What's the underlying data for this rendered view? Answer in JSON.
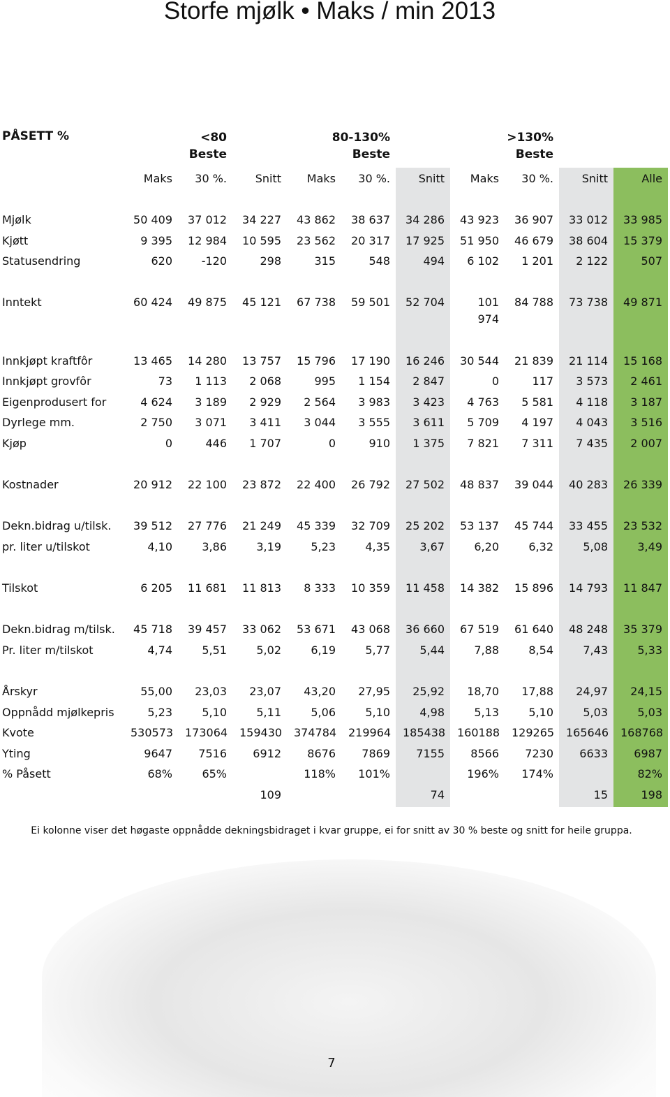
{
  "title": "Storfe mjølk • Maks / min 2013",
  "header": {
    "corner": "PÅSETT %",
    "groups": [
      {
        "label": "<80",
        "sub": "Beste",
        "col": 1
      },
      {
        "label": "80-130%",
        "sub": "Beste",
        "col": 4
      },
      {
        "label": ">130%",
        "sub": "Beste",
        "col": 7
      }
    ],
    "columns": [
      "Maks",
      "30 %.",
      "Snitt",
      "Maks",
      "30 %.",
      "Snitt",
      "Maks",
      "30 %.",
      "Snitt",
      "Alle"
    ]
  },
  "groups": [
    {
      "rows": [
        {
          "label": "Mjølk",
          "values": [
            "50 409",
            "37 012",
            "34 227",
            "43 862",
            "38 637",
            "34 286",
            "43 923",
            "36 907",
            "33 012",
            "33 985"
          ]
        },
        {
          "label": "Kjøtt",
          "values": [
            "9 395",
            "12 984",
            "10 595",
            "23 562",
            "20 317",
            "17 925",
            "51 950",
            "46 679",
            "38 604",
            "15 379"
          ]
        },
        {
          "label": "Statusendring",
          "values": [
            "620",
            "-120",
            "298",
            "315",
            "548",
            "494",
            "6 102",
            "1 201",
            "2 122",
            "507"
          ]
        }
      ]
    },
    {
      "rows": [
        {
          "label": "Inntekt",
          "values": [
            "60 424",
            "49 875",
            "45 121",
            "67 738",
            "59 501",
            "52 704",
            "101 974",
            "84 788",
            "73 738",
            "49 871"
          ]
        }
      ]
    },
    {
      "rows": [
        {
          "label": "Innkjøpt kraftfôr",
          "values": [
            "13 465",
            "14 280",
            "13 757",
            "15 796",
            "17 190",
            "16 246",
            "30 544",
            "21 839",
            "21 114",
            "15 168"
          ]
        },
        {
          "label": "Innkjøpt grovfôr",
          "values": [
            "73",
            "1 113",
            "2 068",
            "995",
            "1 154",
            "2 847",
            "0",
            "117",
            "3 573",
            "2 461"
          ]
        },
        {
          "label": "Eigenprodusert for",
          "values": [
            "4 624",
            "3 189",
            "2 929",
            "2 564",
            "3 983",
            "3 423",
            "4 763",
            "5 581",
            "4 118",
            "3 187"
          ]
        },
        {
          "label": "Dyrlege mm.",
          "values": [
            "2 750",
            "3 071",
            "3 411",
            "3 044",
            "3 555",
            "3 611",
            "5 709",
            "4 197",
            "4 043",
            "3 516"
          ]
        },
        {
          "label": "Kjøp",
          "values": [
            "0",
            "446",
            "1 707",
            "0",
            "910",
            "1 375",
            "7 821",
            "7 311",
            "7 435",
            "2 007"
          ]
        }
      ]
    },
    {
      "rows": [
        {
          "label": "Kostnader",
          "values": [
            "20 912",
            "22 100",
            "23 872",
            "22 400",
            "26 792",
            "27 502",
            "48 837",
            "39 044",
            "40 283",
            "26 339"
          ]
        }
      ]
    },
    {
      "rows": [
        {
          "label": "Dekn.bidrag u/tilsk.",
          "values": [
            "39 512",
            "27 776",
            "21 249",
            "45 339",
            "32 709",
            "25 202",
            "53 137",
            "45 744",
            "33 455",
            "23 532"
          ]
        },
        {
          "label": "pr. liter u/tilskot",
          "values": [
            "4,10",
            "3,86",
            "3,19",
            "5,23",
            "4,35",
            "3,67",
            "6,20",
            "6,32",
            "5,08",
            "3,49"
          ]
        }
      ]
    },
    {
      "rows": [
        {
          "label": "Tilskot",
          "values": [
            "6 205",
            "11 681",
            "11 813",
            "8 333",
            "10 359",
            "11 458",
            "14 382",
            "15 896",
            "14 793",
            "11 847"
          ]
        }
      ]
    },
    {
      "rows": [
        {
          "label": "Dekn.bidrag m/tilsk.",
          "values": [
            "45 718",
            "39 457",
            "33 062",
            "53 671",
            "43 068",
            "36 660",
            "67 519",
            "61 640",
            "48 248",
            "35 379"
          ]
        },
        {
          "label": "Pr. liter m/tilskot",
          "values": [
            "4,74",
            "5,51",
            "5,02",
            "6,19",
            "5,77",
            "5,44",
            "7,88",
            "8,54",
            "7,43",
            "5,33"
          ]
        }
      ]
    },
    {
      "rows": [
        {
          "label": "Årskyr",
          "values": [
            "55,00",
            "23,03",
            "23,07",
            "43,20",
            "27,95",
            "25,92",
            "18,70",
            "17,88",
            "24,97",
            "24,15"
          ]
        },
        {
          "label": "Oppnådd mjølkepris",
          "values": [
            "5,23",
            "5,10",
            "5,11",
            "5,06",
            "5,10",
            "4,98",
            "5,13",
            "5,10",
            "5,03",
            "5,03"
          ]
        },
        {
          "label": "Kvote",
          "values": [
            "530573",
            "173064",
            "159430",
            "374784",
            "219964",
            "185438",
            "160188",
            "129265",
            "165646",
            "168768"
          ]
        },
        {
          "label": "Yting",
          "values": [
            "9647",
            "7516",
            "6912",
            "8676",
            "7869",
            "7155",
            "8566",
            "7230",
            "6633",
            "6987"
          ]
        },
        {
          "label": "% Påsett",
          "values": [
            "68%",
            "65%",
            null,
            "118%",
            "101%",
            null,
            "196%",
            "174%",
            null,
            "82%"
          ]
        },
        {
          "label": null,
          "values": [
            null,
            null,
            "109",
            null,
            null,
            "74",
            null,
            null,
            "15",
            "198"
          ]
        }
      ]
    }
  ],
  "footnote": "Ei kolonne viser det høgaste oppnådde dekningsbidraget i kvar gruppe, ei for snitt av 30 % beste og snitt for heile gruppa.",
  "page_number": "7"
}
